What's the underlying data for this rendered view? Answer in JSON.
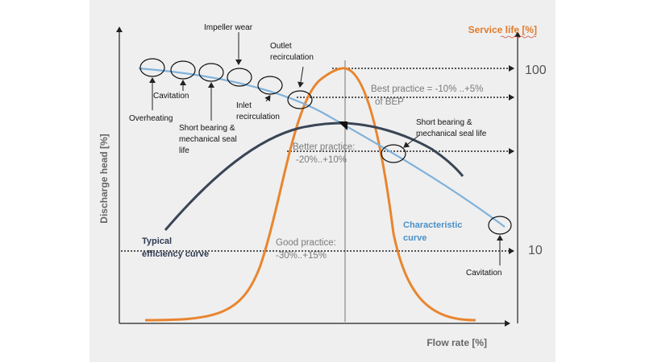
{
  "colors": {
    "efficiency_curve": "#3a4556",
    "characteristic_curve": "#7fb2dc",
    "service_life_curve": "#e8852f",
    "axis": "#222222",
    "panel_background": "#efefef"
  },
  "axes": {
    "x_label": "Flow rate [%]",
    "y_left_label": "Discharge head [%]",
    "y_right_label": "Service life [%]",
    "right_ticks": [
      "100",
      "10"
    ]
  },
  "bands": {
    "best": {
      "line1": "Best practice = -10% ..+5%",
      "line2": "of BEP"
    },
    "better": {
      "line1": "Better practice:",
      "line2": "-20%..+10%"
    },
    "good": {
      "line1": "Good practice:",
      "line2": "-30%..+15%"
    }
  },
  "curve_labels": {
    "characteristic": {
      "line1": "Characteristic",
      "line2": "curve"
    },
    "efficiency": {
      "line1": "Typical",
      "line2": "efficiency curve"
    }
  },
  "annotations": {
    "impeller_wear": "Impeller wear",
    "outlet_recirculation": {
      "line1": "Outlet",
      "line2": "recirculation"
    },
    "cavitation_left": "Cavitation",
    "overheating": "Overheating",
    "inlet_recirculation": {
      "line1": "Inlet",
      "line2": "recirculation"
    },
    "short_bearing_left": {
      "line1": "Short bearing &",
      "line2": "mechanical seal",
      "line3": "life"
    },
    "short_bearing_right": {
      "line1": "Short bearing &",
      "line2": "mechanical seal life"
    },
    "cavitation_right": "Cavitation"
  }
}
